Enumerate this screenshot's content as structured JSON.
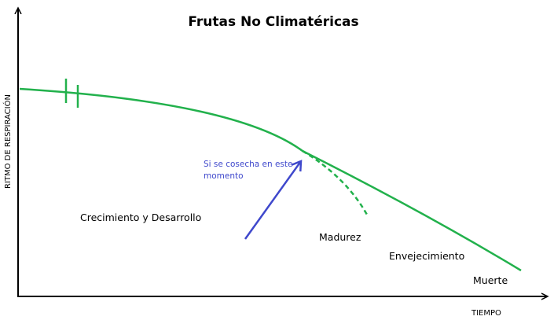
{
  "title": "Frutas No Climatéricas",
  "axes": {
    "y_label": "RITMO DE RESPIRACIÓN",
    "x_label": "TIEMPO"
  },
  "phases": {
    "growth": "Crecimiento y Desarrollo",
    "maturity": "Madurez",
    "aging": "Envejecimiento",
    "death": "Muerte"
  },
  "annotation": {
    "line1": "Si se cosecha en este",
    "line2": "momento"
  },
  "colors": {
    "curve": "#22b14c",
    "arrow": "#3f48cc",
    "annotation_text": "#3f48cc",
    "axes": "#000000"
  }
}
